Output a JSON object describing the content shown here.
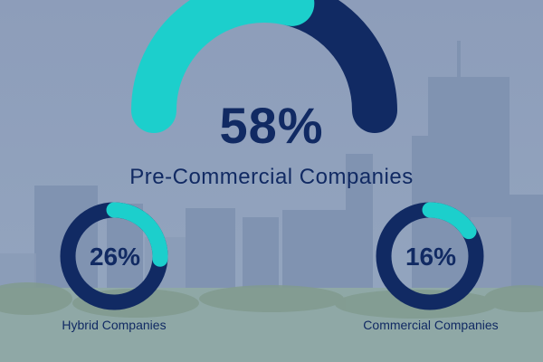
{
  "colors": {
    "filled": "#1ccfcc",
    "remaining": "#112a63",
    "text": "#112a63",
    "backdrop": "#8fa0bc"
  },
  "background": "city-skyline-photo",
  "chart_data": [
    {
      "type": "gauge",
      "categories": [
        "Pre-Commercial Companies"
      ],
      "values": [
        58
      ],
      "label": "58%",
      "category": "Pre-Commercial Companies"
    },
    {
      "type": "donut",
      "categories": [
        "Hybrid Companies"
      ],
      "values": [
        26
      ],
      "label": "26%",
      "category": "Hybrid Companies"
    },
    {
      "type": "donut",
      "categories": [
        "Commercial Companies"
      ],
      "values": [
        16
      ],
      "label": "16%",
      "category": "Commercial Companies"
    }
  ]
}
